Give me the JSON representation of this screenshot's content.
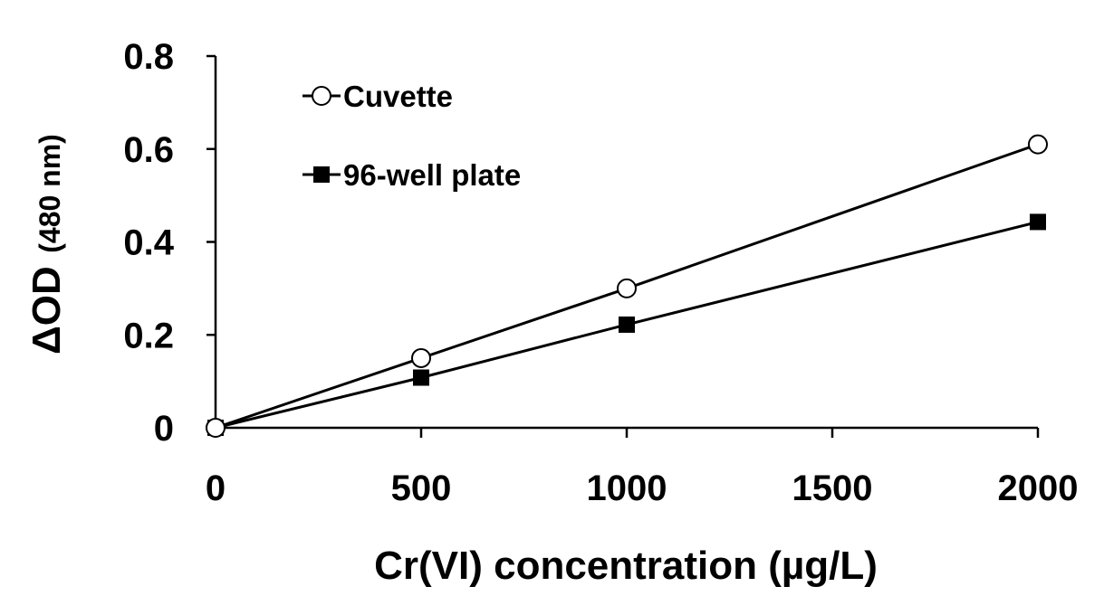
{
  "chart_data": {
    "type": "line",
    "x": [
      0,
      500,
      1000,
      2000
    ],
    "series": [
      {
        "name": "Cuvette",
        "marker": "open-circle",
        "values": [
          0,
          0.15,
          0.3,
          0.61
        ]
      },
      {
        "name": "96-well plate",
        "marker": "filled-square",
        "values": [
          0,
          0.108,
          0.222,
          0.443
        ]
      }
    ],
    "xlabel": "Cr(VI) concentration (µg/L)",
    "ylabel": {
      "main": "ΔOD",
      "sub": "(480 nm)"
    },
    "xlim": [
      0,
      2000
    ],
    "ylim": [
      0,
      0.8
    ],
    "x_ticks": [
      0,
      500,
      1000,
      1500,
      2000
    ],
    "y_ticks": [
      0,
      0.2,
      0.4,
      0.6,
      0.8
    ],
    "x_tick_labels": [
      "0",
      "500",
      "1000",
      "1500",
      "2000"
    ],
    "y_tick_labels": [
      "0",
      "0.2",
      "0.4",
      "0.6",
      "0.8"
    ],
    "grid": false,
    "legend_position": "top-left",
    "colors": {
      "line": "#000000",
      "background": "#ffffff"
    }
  }
}
